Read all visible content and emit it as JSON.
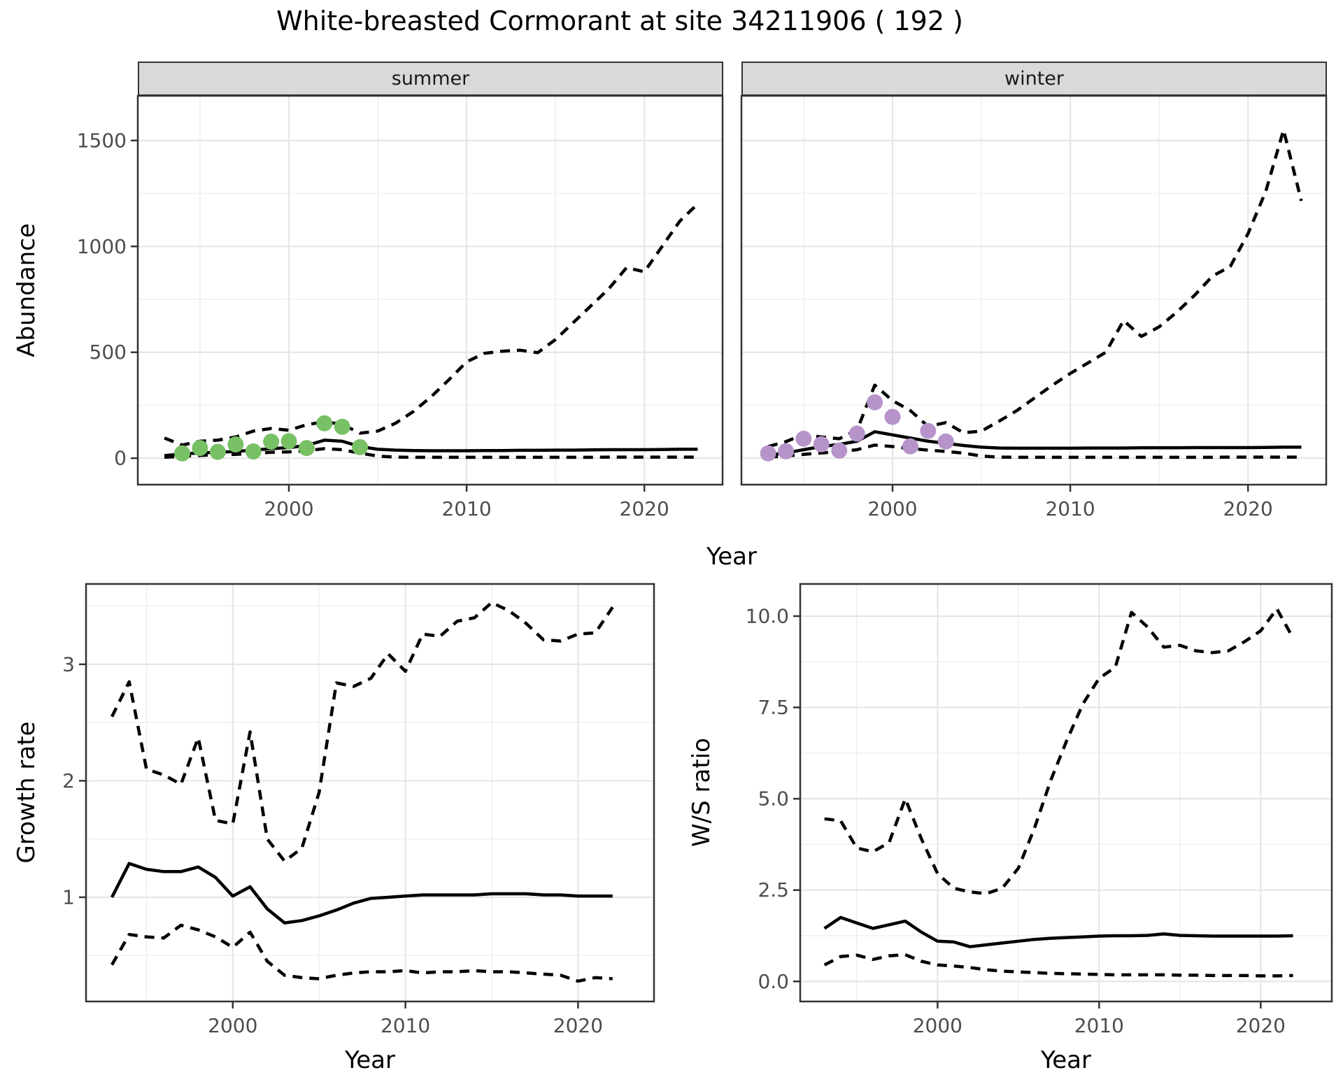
{
  "title": "White-breasted Cormorant at site 34211906 ( 192 )",
  "colors": {
    "summer_points": "#78c064",
    "winter_points": "#b694ca",
    "line": "#000000",
    "panel_border": "#333333",
    "grid_major": "#e6e6e6",
    "grid_minor": "#f0f0f0",
    "strip_bg": "#d9d9d9",
    "tick_text": "#4d4d4d",
    "tick_mark": "#333333"
  },
  "chart_data": [
    {
      "id": "abundance-summer",
      "type": "line",
      "facet": "summer",
      "xlabel": "Year",
      "ylabel": "Abundance",
      "xlim": [
        1991.5,
        2024.4
      ],
      "ylim": [
        -125,
        1711
      ],
      "x_ticks": {
        "major": [
          2000,
          2010,
          2020
        ],
        "labels": [
          "2000",
          "2010",
          "2020"
        ],
        "minor": [
          1995,
          2005,
          2015
        ]
      },
      "y_ticks": {
        "major": [
          0,
          500,
          1000,
          1500
        ],
        "labels": [
          "0",
          "500",
          "1000",
          "1500"
        ],
        "minor": [
          250,
          750,
          1250
        ]
      },
      "legend": "none",
      "grid": true,
      "years": [
        1993,
        1994,
        1995,
        1996,
        1997,
        1998,
        1999,
        2000,
        2001,
        2002,
        2003,
        2004,
        2005,
        2006,
        2007,
        2008,
        2009,
        2010,
        2011,
        2012,
        2013,
        2014,
        2015,
        2016,
        2017,
        2018,
        2019,
        2020,
        2021,
        2022,
        2023
      ],
      "series": [
        {
          "name": "lower_95ci",
          "style": "dashed",
          "values": [
            4,
            9,
            13,
            16,
            18,
            22,
            28,
            30,
            35,
            45,
            40,
            24,
            10,
            5,
            4,
            4,
            4,
            4,
            4,
            4,
            4,
            4,
            4,
            4,
            4,
            5,
            5,
            5,
            5,
            5,
            5
          ]
        },
        {
          "name": "median",
          "style": "solid",
          "values": [
            12,
            20,
            25,
            28,
            32,
            38,
            45,
            50,
            60,
            85,
            80,
            55,
            42,
            38,
            36,
            35,
            35,
            35,
            36,
            36,
            37,
            37,
            38,
            38,
            39,
            40,
            40,
            40,
            41,
            42,
            42
          ]
        },
        {
          "name": "upper_95ci",
          "style": "dashed",
          "values": [
            95,
            62,
            80,
            85,
            100,
            128,
            140,
            132,
            158,
            172,
            160,
            118,
            128,
            165,
            220,
            290,
            370,
            455,
            495,
            505,
            510,
            498,
            560,
            640,
            720,
            800,
            900,
            880,
            1000,
            1120,
            1200
          ]
        }
      ],
      "observed_points": {
        "color": "#78c064",
        "years": [
          1994,
          1995,
          1996,
          1997,
          1998,
          1999,
          2000,
          2001,
          2002,
          2003,
          2004
        ],
        "values": [
          23,
          48,
          30,
          65,
          32,
          78,
          80,
          48,
          165,
          148,
          52
        ]
      }
    },
    {
      "id": "abundance-winter",
      "type": "line",
      "facet": "winter",
      "xlabel": "Year",
      "ylabel": "",
      "xlim": [
        1991.5,
        2024.4
      ],
      "ylim": [
        -125,
        1711
      ],
      "x_ticks": {
        "major": [
          2000,
          2010,
          2020
        ],
        "labels": [
          "2000",
          "2010",
          "2020"
        ],
        "minor": [
          1995,
          2005,
          2015
        ]
      },
      "y_ticks": {
        "major": [
          0,
          500,
          1000,
          1500
        ],
        "labels": [
          "0",
          "500",
          "1000",
          "1500"
        ],
        "minor": [
          250,
          750,
          1250
        ]
      },
      "legend": "none",
      "grid": true,
      "years": [
        1993,
        1994,
        1995,
        1996,
        1997,
        1998,
        1999,
        2000,
        2001,
        2002,
        2003,
        2004,
        2005,
        2006,
        2007,
        2008,
        2009,
        2010,
        2011,
        2012,
        2013,
        2014,
        2015,
        2016,
        2017,
        2018,
        2019,
        2020,
        2021,
        2022,
        2023
      ],
      "series": [
        {
          "name": "lower_95ci",
          "style": "dashed",
          "values": [
            5,
            10,
            18,
            25,
            30,
            40,
            62,
            55,
            45,
            38,
            32,
            24,
            10,
            5,
            4,
            4,
            4,
            4,
            4,
            4,
            4,
            4,
            4,
            4,
            4,
            4,
            5,
            5,
            5,
            5,
            5
          ]
        },
        {
          "name": "median",
          "style": "solid",
          "values": [
            15,
            25,
            40,
            55,
            65,
            80,
            125,
            110,
            95,
            80,
            70,
            60,
            52,
            48,
            47,
            47,
            47,
            47,
            48,
            48,
            48,
            49,
            49,
            49,
            50,
            50,
            50,
            50,
            51,
            52,
            52
          ]
        },
        {
          "name": "upper_95ci",
          "style": "dashed",
          "values": [
            55,
            78,
            112,
            100,
            92,
            132,
            345,
            272,
            225,
            150,
            168,
            120,
            128,
            175,
            225,
            285,
            345,
            400,
            450,
            500,
            650,
            575,
            620,
            690,
            770,
            860,
            905,
            1060,
            1260,
            1550,
            1215
          ]
        }
      ],
      "observed_points": {
        "color": "#b694ca",
        "years": [
          1993,
          1994,
          1995,
          1996,
          1997,
          1998,
          1999,
          2000,
          2001,
          2002,
          2003
        ],
        "values": [
          23,
          33,
          92,
          66,
          36,
          116,
          264,
          195,
          56,
          129,
          79
        ]
      }
    },
    {
      "id": "growth-rate",
      "type": "line",
      "facet": "",
      "xlabel": "Year",
      "ylabel": "Growth rate",
      "xlim": [
        1991.5,
        2024.4
      ],
      "ylim": [
        0.105,
        3.69
      ],
      "x_ticks": {
        "major": [
          2000,
          2010,
          2020
        ],
        "labels": [
          "2000",
          "2010",
          "2020"
        ],
        "minor": [
          1995,
          2005,
          2015
        ]
      },
      "y_ticks": {
        "major": [
          1,
          2,
          3
        ],
        "labels": [
          "1",
          "2",
          "3"
        ],
        "minor": [
          0.5,
          1.5,
          2.5,
          3.5
        ]
      },
      "legend": "none",
      "grid": true,
      "years": [
        1993,
        1994,
        1995,
        1996,
        1997,
        1998,
        1999,
        2000,
        2001,
        2002,
        2003,
        2004,
        2005,
        2006,
        2007,
        2008,
        2009,
        2010,
        2011,
        2012,
        2013,
        2014,
        2015,
        2016,
        2017,
        2018,
        2019,
        2020,
        2021,
        2022
      ],
      "series": [
        {
          "name": "lower_95ci",
          "style": "dashed",
          "values": [
            0.42,
            0.68,
            0.66,
            0.65,
            0.76,
            0.72,
            0.66,
            0.57,
            0.7,
            0.45,
            0.33,
            0.31,
            0.3,
            0.33,
            0.35,
            0.36,
            0.36,
            0.37,
            0.35,
            0.36,
            0.36,
            0.37,
            0.36,
            0.36,
            0.35,
            0.34,
            0.33,
            0.28,
            0.31,
            0.3
          ]
        },
        {
          "name": "median",
          "style": "solid",
          "values": [
            1.0,
            1.29,
            1.24,
            1.22,
            1.22,
            1.26,
            1.17,
            1.01,
            1.09,
            0.9,
            0.78,
            0.8,
            0.84,
            0.89,
            0.95,
            0.99,
            1.0,
            1.01,
            1.02,
            1.02,
            1.02,
            1.02,
            1.03,
            1.03,
            1.03,
            1.02,
            1.02,
            1.01,
            1.01,
            1.01
          ]
        },
        {
          "name": "upper_95ci",
          "style": "dashed",
          "values": [
            2.55,
            2.85,
            2.1,
            2.05,
            1.97,
            2.37,
            1.66,
            1.63,
            2.42,
            1.5,
            1.31,
            1.42,
            1.9,
            2.84,
            2.81,
            2.88,
            3.09,
            2.94,
            3.26,
            3.24,
            3.37,
            3.4,
            3.53,
            3.46,
            3.35,
            3.21,
            3.2,
            3.26,
            3.27,
            3.49
          ]
        }
      ],
      "observed_points": {
        "color": "",
        "years": [],
        "values": []
      }
    },
    {
      "id": "ws-ratio",
      "type": "line",
      "facet": "",
      "xlabel": "Year",
      "ylabel": "W/S ratio",
      "xlim": [
        1991.5,
        2024.4
      ],
      "ylim": [
        -0.55,
        10.88
      ],
      "x_ticks": {
        "major": [
          2000,
          2010,
          2020
        ],
        "labels": [
          "2000",
          "2010",
          "2020"
        ],
        "minor": [
          1995,
          2005,
          2015
        ]
      },
      "y_ticks": {
        "major": [
          0,
          2.5,
          5,
          7.5,
          10
        ],
        "labels": [
          "0.0",
          "2.5",
          "5.0",
          "7.5",
          "10.0"
        ],
        "minor": [
          1.25,
          3.75,
          6.25,
          8.75
        ]
      },
      "legend": "none",
      "grid": true,
      "years": [
        1993,
        1994,
        1995,
        1996,
        1997,
        1998,
        1999,
        2000,
        2001,
        2002,
        2003,
        2004,
        2005,
        2006,
        2007,
        2008,
        2009,
        2010,
        2011,
        2012,
        2013,
        2014,
        2015,
        2016,
        2017,
        2018,
        2019,
        2020,
        2021,
        2022
      ],
      "series": [
        {
          "name": "lower_95ci",
          "style": "dashed",
          "values": [
            0.45,
            0.68,
            0.72,
            0.6,
            0.7,
            0.73,
            0.55,
            0.45,
            0.42,
            0.38,
            0.32,
            0.28,
            0.26,
            0.24,
            0.22,
            0.21,
            0.2,
            0.19,
            0.18,
            0.18,
            0.18,
            0.18,
            0.17,
            0.17,
            0.16,
            0.16,
            0.16,
            0.15,
            0.15,
            0.16
          ]
        },
        {
          "name": "median",
          "style": "solid",
          "values": [
            1.45,
            1.75,
            1.6,
            1.45,
            1.55,
            1.65,
            1.35,
            1.1,
            1.08,
            0.95,
            1.0,
            1.05,
            1.1,
            1.15,
            1.18,
            1.2,
            1.22,
            1.24,
            1.25,
            1.25,
            1.26,
            1.3,
            1.26,
            1.25,
            1.24,
            1.24,
            1.24,
            1.24,
            1.24,
            1.25
          ]
        },
        {
          "name": "upper_95ci",
          "style": "dashed",
          "values": [
            4.45,
            4.4,
            3.65,
            3.55,
            3.8,
            5.0,
            3.9,
            2.95,
            2.55,
            2.45,
            2.4,
            2.55,
            3.1,
            4.2,
            5.5,
            6.6,
            7.6,
            8.3,
            8.6,
            10.1,
            9.7,
            9.15,
            9.2,
            9.05,
            9.0,
            9.05,
            9.3,
            9.6,
            10.2,
            9.4
          ]
        }
      ],
      "observed_points": {
        "color": "",
        "years": [],
        "values": []
      }
    }
  ]
}
